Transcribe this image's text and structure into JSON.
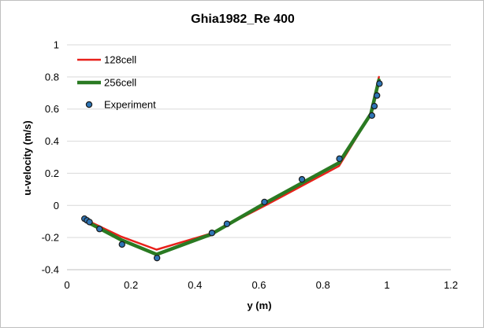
{
  "chart_data": {
    "type": "line",
    "title": "Ghia1982_Re 400",
    "xlabel": "y (m)",
    "ylabel": "u-velocity (m/s)",
    "xlim": [
      0,
      1.2
    ],
    "ylim": [
      -0.4,
      1.0
    ],
    "xticks": [
      "0",
      "0.2",
      "0.4",
      "0.6",
      "0.8",
      "1",
      "1.2"
    ],
    "yticks": [
      "-0.4",
      "-0.2",
      "0",
      "0.2",
      "0.4",
      "0.6",
      "0.8",
      "1"
    ],
    "xtick_values": [
      0,
      0.2,
      0.4,
      0.6,
      0.8,
      1.0,
      1.2
    ],
    "ytick_values": [
      -0.4,
      -0.2,
      0,
      0.2,
      0.4,
      0.6,
      0.8,
      1.0
    ],
    "grid": "horizontal",
    "legend_position": "top-left",
    "series": [
      {
        "name": "128cell",
        "type": "line",
        "color": "#e8201a",
        "x": [
          0.055,
          0.07,
          0.17,
          0.28,
          0.45,
          0.62,
          0.85,
          0.95,
          0.975
        ],
        "y": [
          -0.09,
          -0.1,
          -0.195,
          -0.275,
          -0.175,
          0.0,
          0.245,
          0.57,
          0.8
        ]
      },
      {
        "name": "256cell",
        "type": "line",
        "color": "#2a7a22",
        "x": [
          0.055,
          0.07,
          0.17,
          0.28,
          0.45,
          0.62,
          0.85,
          0.95,
          0.975
        ],
        "y": [
          -0.085,
          -0.11,
          -0.215,
          -0.305,
          -0.18,
          0.015,
          0.265,
          0.57,
          0.78
        ]
      },
      {
        "name": "Experiment",
        "type": "scatter",
        "color": "#2e75b6",
        "x": [
          0.0547,
          0.0625,
          0.0703,
          0.1016,
          0.1719,
          0.2813,
          0.4531,
          0.5,
          0.6172,
          0.7344,
          0.8516,
          0.9531,
          0.9609,
          0.9688,
          0.9766
        ],
        "y": [
          -0.0827,
          -0.0931,
          -0.1034,
          -0.1466,
          -0.2427,
          -0.3273,
          -0.1712,
          -0.1148,
          0.0214,
          0.1626,
          0.2909,
          0.5597,
          0.6179,
          0.6844,
          0.7584
        ]
      }
    ]
  }
}
